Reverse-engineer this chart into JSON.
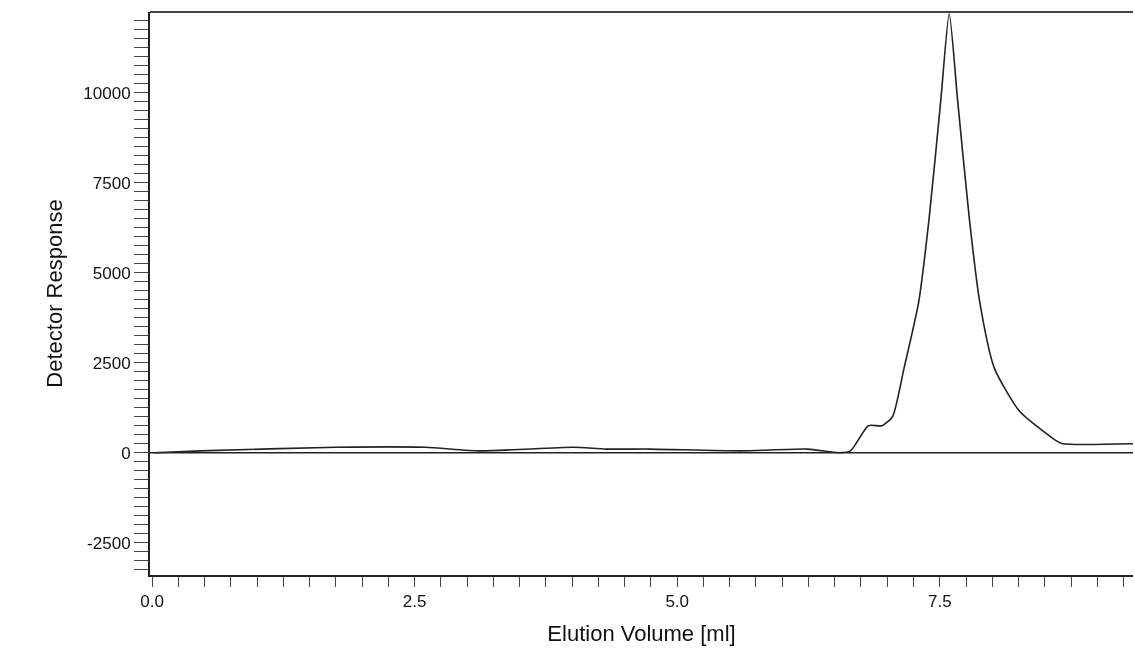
{
  "chart_data": {
    "type": "line",
    "xlabel": "Elution Volume [ml]",
    "ylabel": "Detector Response",
    "x": [
      0.02,
      0.46,
      1.75,
      2.6,
      3.12,
      4.01,
      4.32,
      4.74,
      5.61,
      6.24,
      6.54,
      6.65,
      6.82,
      6.95,
      7.05,
      7.16,
      7.3,
      7.4,
      7.51,
      7.59,
      7.67,
      7.78,
      7.88,
      8.02,
      8.26,
      8.6,
      8.67,
      9.34
    ],
    "series": [
      {
        "color": "#222222",
        "values": [
          0,
          50,
          150,
          150,
          50,
          150,
          100,
          100,
          50,
          100,
          0,
          50,
          750,
          750,
          1000,
          2350,
          4200,
          6550,
          9800,
          12200,
          9800,
          6550,
          4200,
          2350,
          1150,
          350,
          250,
          250
        ]
      }
    ],
    "xlim": [
      -0.02,
      9.34
    ],
    "ylim": [
      -3400,
      12250
    ],
    "xticks": [
      {
        "value": 0,
        "label": "0.0"
      },
      {
        "value": 0.25,
        "label": null
      },
      {
        "value": 0.5,
        "label": null
      },
      {
        "value": 0.75,
        "label": null
      },
      {
        "value": 1.0,
        "label": null
      },
      {
        "value": 1.25,
        "label": null
      },
      {
        "value": 1.5,
        "label": null
      },
      {
        "value": 1.75,
        "label": null
      },
      {
        "value": 2.0,
        "label": null
      },
      {
        "value": 2.25,
        "label": null
      },
      2.5,
      {
        "value": 2.75,
        "label": null
      },
      {
        "value": 3.0,
        "label": null
      },
      {
        "value": 3.25,
        "label": null
      },
      {
        "value": 3.5,
        "label": null
      },
      {
        "value": 3.75,
        "label": null
      },
      {
        "value": 4.0,
        "label": null
      },
      {
        "value": 4.25,
        "label": null
      },
      {
        "value": 4.5,
        "label": null
      },
      {
        "value": 4.75,
        "label": null
      },
      {
        "value": 5,
        "label": "5.0"
      },
      {
        "value": 5.25,
        "label": null
      },
      {
        "value": 5.5,
        "label": null
      },
      {
        "value": 5.75,
        "label": null
      },
      {
        "value": 6.0,
        "label": null
      },
      {
        "value": 6.25,
        "label": null
      },
      {
        "value": 6.5,
        "label": null
      },
      {
        "value": 6.75,
        "label": null
      },
      {
        "value": 7.0,
        "label": null
      },
      {
        "value": 7.25,
        "label": null
      },
      7.5,
      {
        "value": 7.75,
        "label": null
      },
      {
        "value": 8.0,
        "label": null
      },
      {
        "value": 8.25,
        "label": null
      },
      {
        "value": 8.5,
        "label": null
      },
      {
        "value": 8.75,
        "label": null
      },
      {
        "value": 9.0,
        "label": null
      },
      {
        "value": 9.25,
        "label": null
      }
    ],
    "yticks": [
      {
        "value": -3250,
        "label": null
      },
      {
        "value": -3000,
        "label": null
      },
      {
        "value": -2750,
        "label": null
      },
      -2500,
      {
        "value": -2250,
        "label": null
      },
      {
        "value": -2000,
        "label": null
      },
      {
        "value": -1750,
        "label": null
      },
      {
        "value": -1500,
        "label": null
      },
      {
        "value": -1250,
        "label": null
      },
      {
        "value": -1000,
        "label": null
      },
      {
        "value": -750,
        "label": null
      },
      {
        "value": -500,
        "label": null
      },
      {
        "value": -250,
        "label": null
      },
      0,
      {
        "value": 250,
        "label": null
      },
      {
        "value": 500,
        "label": null
      },
      {
        "value": 750,
        "label": null
      },
      {
        "value": 1000,
        "label": null
      },
      {
        "value": 1250,
        "label": null
      },
      {
        "value": 1500,
        "label": null
      },
      {
        "value": 1750,
        "label": null
      },
      {
        "value": 2000,
        "label": null
      },
      {
        "value": 2250,
        "label": null
      },
      2500,
      {
        "value": 2750,
        "label": null
      },
      {
        "value": 3000,
        "label": null
      },
      {
        "value": 3250,
        "label": null
      },
      {
        "value": 3500,
        "label": null
      },
      {
        "value": 3750,
        "label": null
      },
      {
        "value": 4000,
        "label": null
      },
      {
        "value": 4250,
        "label": null
      },
      {
        "value": 4500,
        "label": null
      },
      {
        "value": 4750,
        "label": null
      },
      5000,
      {
        "value": 5250,
        "label": null
      },
      {
        "value": 5500,
        "label": null
      },
      {
        "value": 5750,
        "label": null
      },
      {
        "value": 6000,
        "label": null
      },
      {
        "value": 6250,
        "label": null
      },
      {
        "value": 6500,
        "label": null
      },
      {
        "value": 6750,
        "label": null
      },
      {
        "value": 7000,
        "label": null
      },
      {
        "value": 7250,
        "label": null
      },
      7500,
      {
        "value": 7750,
        "label": null
      },
      {
        "value": 8000,
        "label": null
      },
      {
        "value": 8250,
        "label": null
      },
      {
        "value": 8500,
        "label": null
      },
      {
        "value": 8750,
        "label": null
      },
      {
        "value": 9000,
        "label": null
      },
      {
        "value": 9250,
        "label": null
      },
      {
        "value": 9500,
        "label": null
      },
      {
        "value": 9750,
        "label": null
      },
      10000,
      {
        "value": 10250,
        "label": null
      },
      {
        "value": 10500,
        "label": null
      },
      {
        "value": 10750,
        "label": null
      },
      {
        "value": 11000,
        "label": null
      },
      {
        "value": 11250,
        "label": null
      },
      {
        "value": 11500,
        "label": null
      },
      {
        "value": 11750,
        "label": null
      },
      {
        "value": 12000,
        "label": null
      }
    ],
    "ref_lines": [
      {
        "axis": "y",
        "value": 0,
        "label": null,
        "color": "#222222"
      }
    ],
    "marker": "none",
    "line_style": "solid"
  }
}
